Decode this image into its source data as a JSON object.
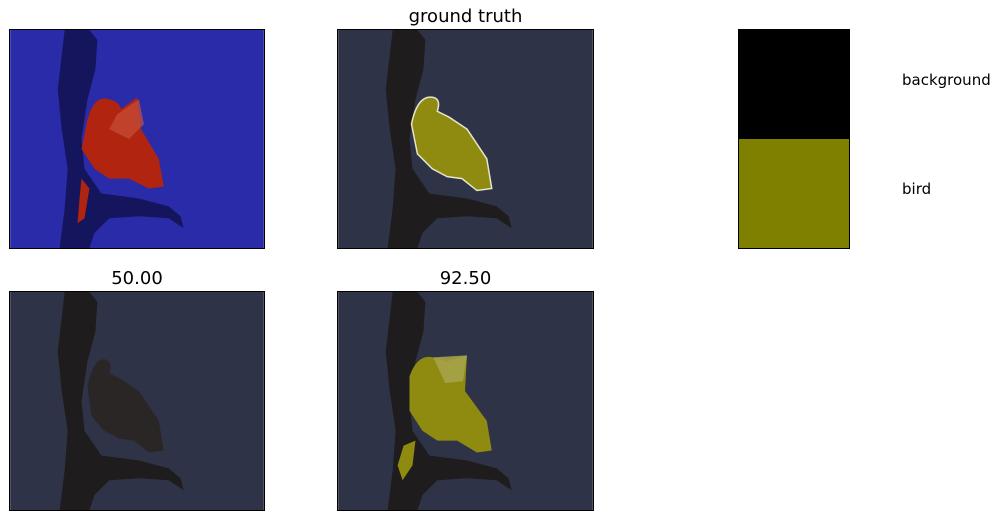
{
  "panels": {
    "input_overlay": {
      "title": ""
    },
    "ground_truth": {
      "title": "ground truth"
    },
    "prediction_1": {
      "title": "50.00"
    },
    "prediction_2": {
      "title": "92.50"
    }
  },
  "legend": {
    "items": [
      {
        "label": "background",
        "color": "#000000"
      },
      {
        "label": "bird",
        "color": "#808000"
      }
    ]
  },
  "colors": {
    "sky": "#2f3347",
    "blue_overlay": "#2626a8",
    "red_overlay": "#b01a0a",
    "yellow_overlay": "#8f8a10",
    "tree": "#1e1c1c"
  },
  "icons": [
    "photo-thumbnail",
    "segmentation-mask"
  ]
}
